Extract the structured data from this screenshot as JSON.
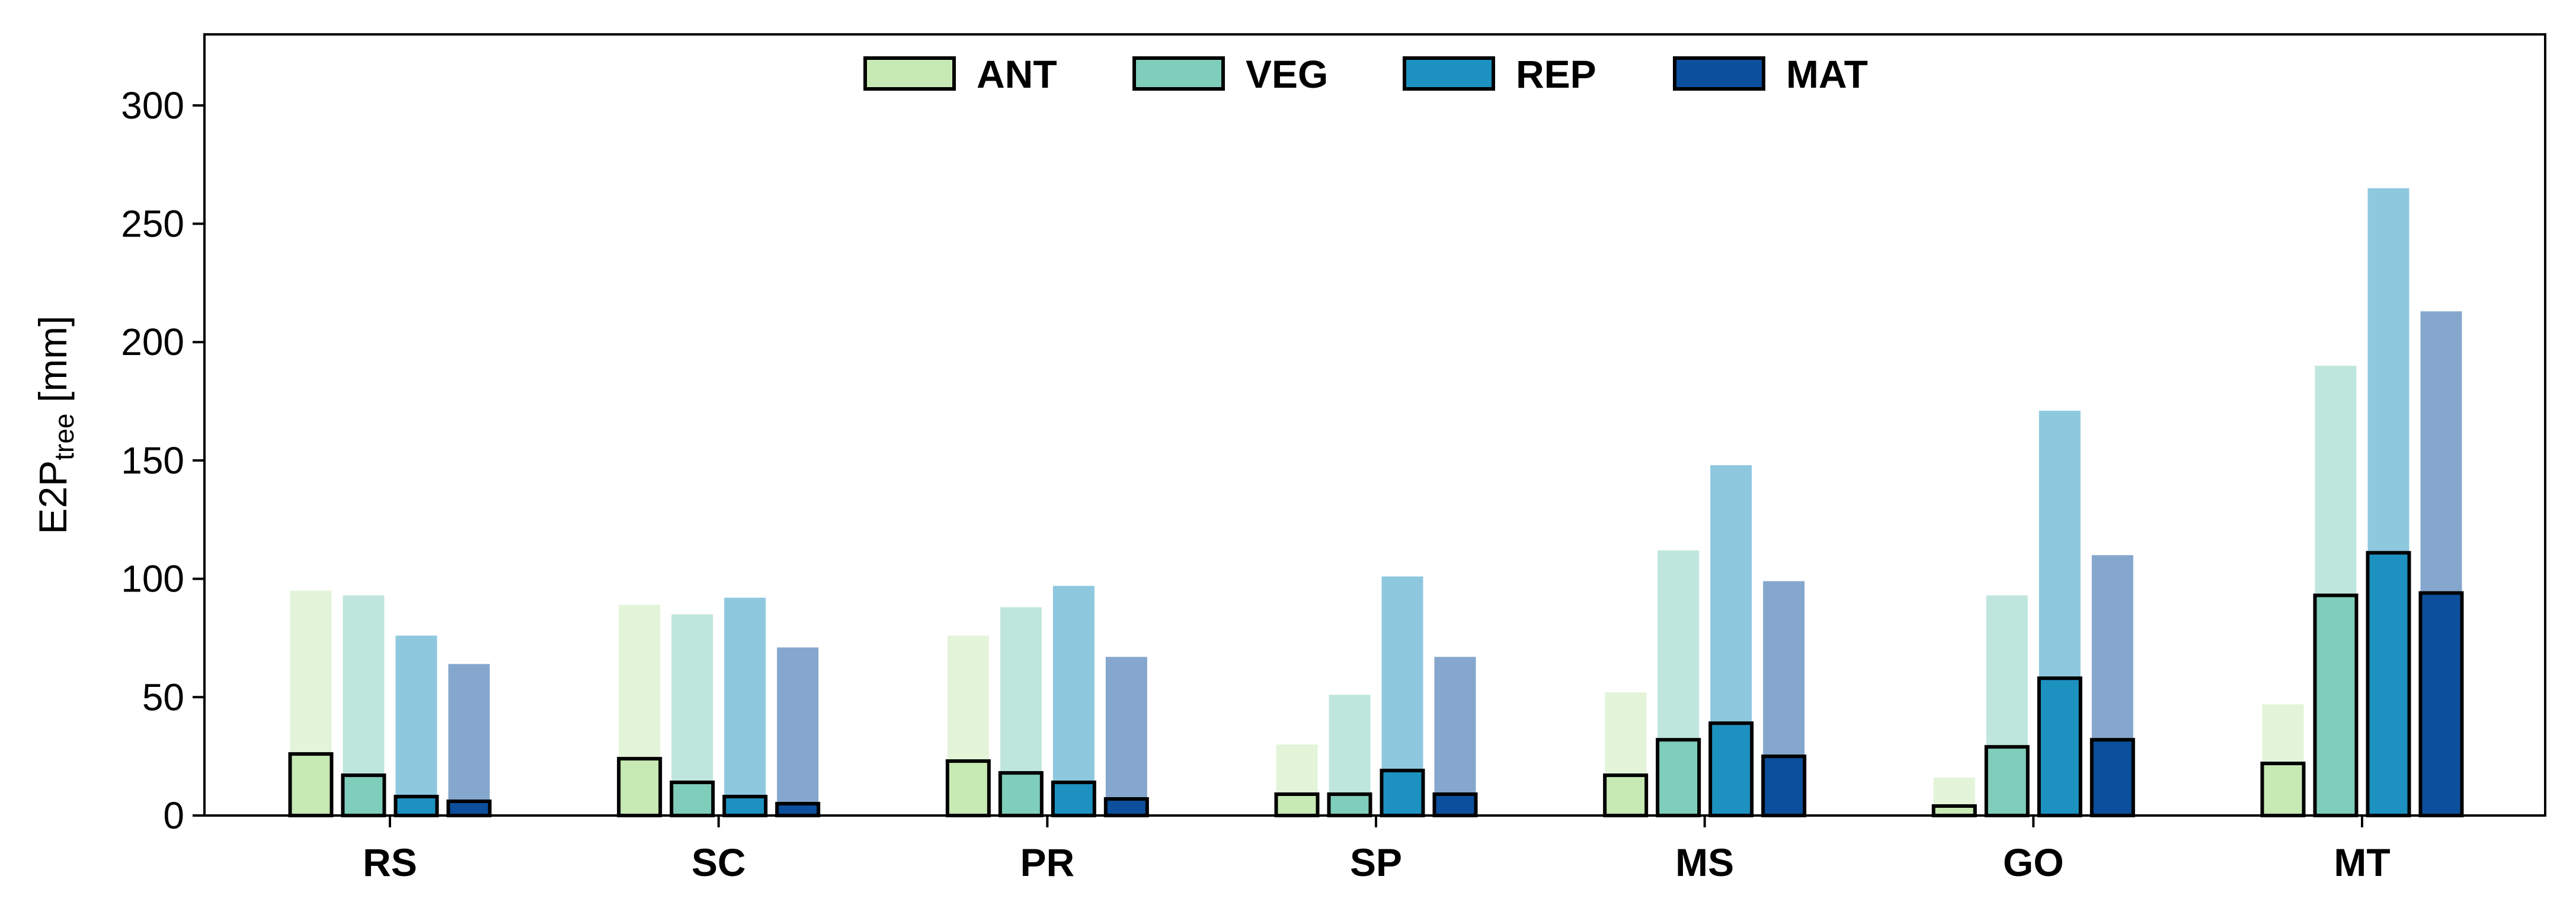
{
  "chart_data": {
    "type": "bar",
    "title": "",
    "ylabel": {
      "main": "E2P",
      "subscript": "tree",
      "unit": "[mm]"
    },
    "xlabel": "",
    "ylim": [
      0,
      330
    ],
    "yticks": [
      "0",
      "50",
      "100",
      "150",
      "200",
      "250",
      "300"
    ],
    "categories": [
      "RS",
      "SC",
      "PR",
      "SP",
      "MS",
      "GO",
      "MT"
    ],
    "legend_position": "top-center",
    "grid": false,
    "series": [
      {
        "name": "ANT",
        "color": "#c7e9b4",
        "values": [
          26,
          24,
          23,
          9,
          17,
          4,
          22
        ],
        "background_values": [
          95,
          89,
          76,
          30,
          52,
          16,
          47
        ]
      },
      {
        "name": "VEG",
        "color": "#7fcdbb",
        "values": [
          17,
          14,
          18,
          9,
          32,
          29,
          93
        ],
        "background_values": [
          93,
          85,
          88,
          51,
          112,
          93,
          190
        ]
      },
      {
        "name": "REP",
        "color": "#1d91c0",
        "values": [
          8,
          8,
          14,
          19,
          39,
          58,
          111
        ],
        "background_values": [
          76,
          92,
          97,
          101,
          148,
          171,
          265
        ]
      },
      {
        "name": "MAT",
        "color": "#0c4f9c",
        "values": [
          6,
          5,
          7,
          9,
          25,
          32,
          94
        ],
        "background_values": [
          64,
          71,
          67,
          67,
          99,
          110,
          213
        ]
      }
    ]
  }
}
